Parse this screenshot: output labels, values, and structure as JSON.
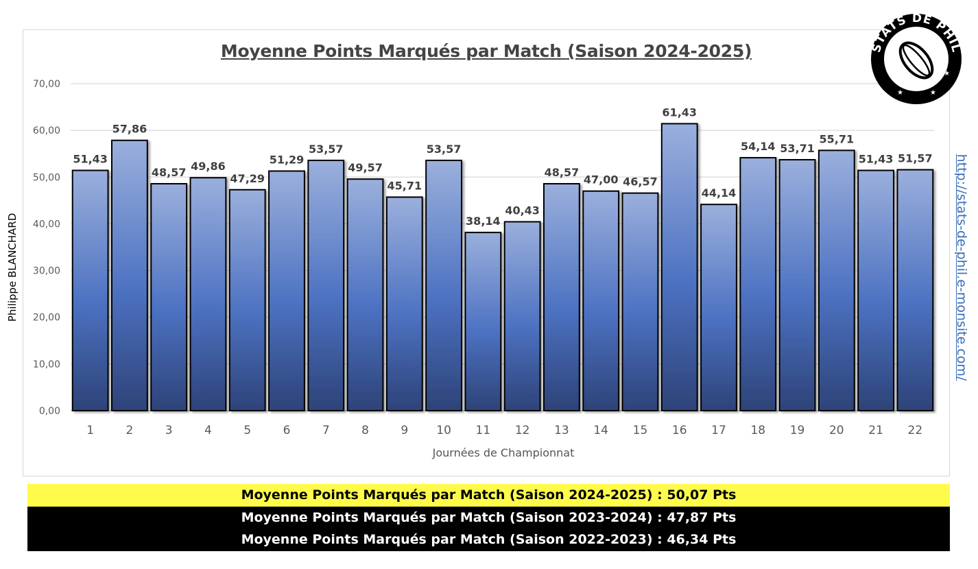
{
  "chart_data": {
    "type": "bar",
    "title": "Moyenne Points Marqués par Match (Saison 2024-2025)",
    "xlabel": "Journées de Championnat",
    "ylabel": "",
    "categories": [
      "1",
      "2",
      "3",
      "4",
      "5",
      "6",
      "7",
      "8",
      "9",
      "10",
      "11",
      "12",
      "13",
      "14",
      "15",
      "16",
      "17",
      "18",
      "19",
      "20",
      "21",
      "22"
    ],
    "values": [
      51.43,
      57.86,
      48.57,
      49.86,
      47.29,
      51.29,
      53.57,
      49.57,
      45.71,
      53.57,
      38.14,
      40.43,
      48.57,
      47.0,
      46.57,
      61.43,
      44.14,
      54.14,
      53.71,
      55.71,
      51.43,
      51.57
    ],
    "value_labels": [
      "51,43",
      "57,86",
      "48,57",
      "49,86",
      "47,29",
      "51,29",
      "53,57",
      "49,57",
      "45,71",
      "53,57",
      "38,14",
      "40,43",
      "48,57",
      "47,00",
      "46,57",
      "61,43",
      "44,14",
      "54,14",
      "53,71",
      "55,71",
      "51,43",
      "51,57"
    ],
    "ylim": [
      0,
      70
    ],
    "yticks": [
      0,
      10,
      20,
      30,
      40,
      50,
      60,
      70
    ],
    "ytick_labels": [
      "0,00",
      "10,00",
      "20,00",
      "30,00",
      "40,00",
      "50,00",
      "60,00",
      "70,00"
    ],
    "grid": true,
    "legend": "none",
    "bar_color_top": "#9aafdc",
    "bar_color_mid": "#4d72c2",
    "bar_color_bottom": "#2d4378"
  },
  "side_text": {
    "author": "Philippe BLANCHARD",
    "site": "http://stats-de-phil.e-monsite.com/"
  },
  "logo": {
    "text": "STATS DE PHIL",
    "icon": "rugby-ball-icon"
  },
  "summary": {
    "row1": "Moyenne Points Marqués par Match (Saison 2024-2025)  : 50,07 Pts",
    "row2": "Moyenne Points Marqués par Match (Saison 2023-2024) : 47,87 Pts",
    "row3": "Moyenne Points Marqués par Match (Saison 2022-2023) : 46,34 Pts",
    "row1_color": "#fffb4b",
    "row_dark_color": "#000000"
  }
}
